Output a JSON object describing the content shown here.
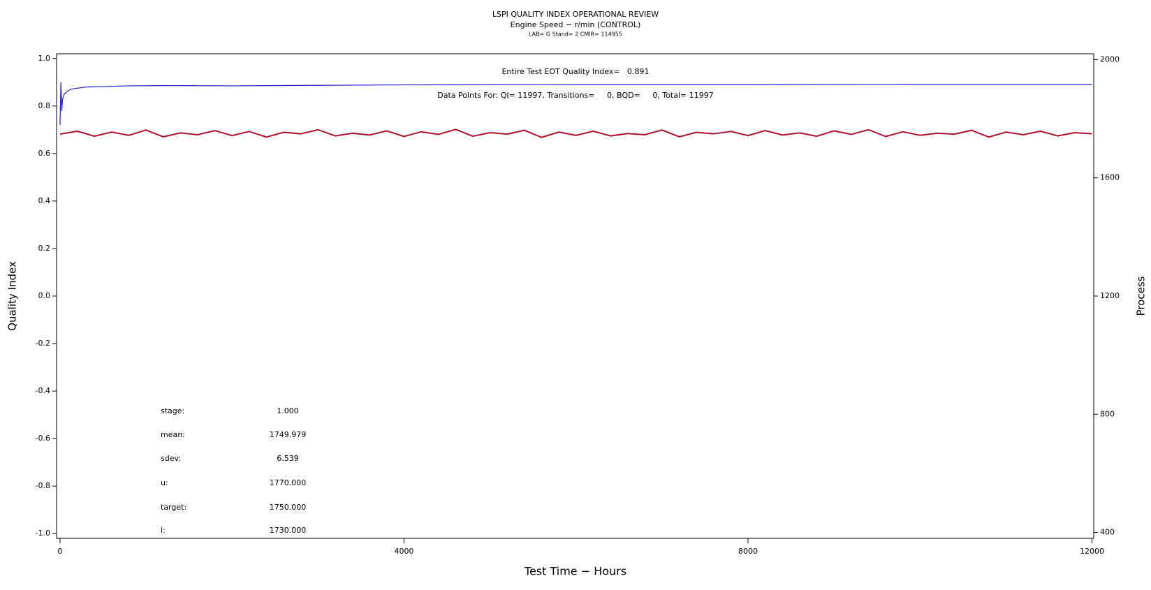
{
  "chart_data": {
    "type": "line",
    "title": "LSPI QUALITY INDEX OPERATIONAL REVIEW",
    "subtitle": "Engine Speed − r/min (CONTROL)",
    "caption": "LAB= G Stand= 2 CMIR= 114955",
    "x_label": "Test Time − Hours",
    "y_label": "Quality Index",
    "y2_label": "Process",
    "annotations": [
      "Entire Test EOT Quality Index=   0.891",
      "Data Points For: QI= 11997, Transitions=     0, BQD=     0, Total= 11997"
    ],
    "stats": [
      [
        "stage:",
        "1.000"
      ],
      [
        "mean:",
        "1749.979"
      ],
      [
        "sdev:",
        "6.539"
      ],
      [
        "u:",
        "1770.000"
      ],
      [
        "target:",
        "1750.000"
      ],
      [
        "l:",
        "1730.000"
      ]
    ],
    "xlim": [
      -40,
      12020
    ],
    "xticks": [
      0,
      4000,
      8000,
      12000
    ],
    "ylim": [
      -1.02,
      1.02
    ],
    "yticks": [
      {
        "value": 1,
        "label": "1.0"
      },
      0.8,
      0.6,
      0.4,
      0.2,
      {
        "value": 0,
        "label": "0.0"
      },
      -0.2,
      -0.4,
      -0.6,
      -0.8,
      {
        "value": -1,
        "label": "-1.0"
      }
    ],
    "y2lim": [
      380,
      2020
    ],
    "y2ticks": [
      400,
      800,
      1200,
      1600,
      2000
    ],
    "series": [
      {
        "name": "Process",
        "color": "#b0102a",
        "axis": "y2",
        "x": [
          0,
          200,
          400,
          600,
          800,
          1000,
          1200,
          1400,
          1600,
          1800,
          2000,
          2200,
          2400,
          2600,
          2800,
          3000,
          3200,
          3400,
          3600,
          3800,
          4000,
          4200,
          4400,
          4600,
          4800,
          5000,
          5200,
          5400,
          5600,
          5800,
          6000,
          6200,
          6400,
          6600,
          6800,
          7000,
          7200,
          7400,
          7600,
          7800,
          8000,
          8200,
          8400,
          8600,
          8800,
          9000,
          9200,
          9400,
          9600,
          9800,
          10000,
          10200,
          10400,
          10600,
          10800,
          11000,
          11200,
          11400,
          11600,
          11800,
          12000
        ],
        "values": [
          1748,
          1758,
          1741,
          1755,
          1744,
          1762,
          1739,
          1752,
          1746,
          1760,
          1743,
          1757,
          1738,
          1754,
          1749,
          1763,
          1742,
          1751,
          1745,
          1759,
          1740,
          1756,
          1747,
          1764,
          1741,
          1753,
          1748,
          1761,
          1737,
          1755,
          1744,
          1758,
          1742,
          1750,
          1746,
          1762,
          1739,
          1754,
          1749,
          1757,
          1743,
          1760,
          1745,
          1752,
          1741,
          1759,
          1747,
          1763,
          1740,
          1756,
          1744,
          1751,
          1748,
          1761,
          1738,
          1755,
          1746,
          1758,
          1742,
          1753,
          1749
        ]
      },
      {
        "name": "Quality Index",
        "color": "#1a1acc",
        "axis": "y",
        "x": [
          0,
          10,
          20,
          30,
          50,
          80,
          120,
          200,
          300,
          500,
          800,
          1200,
          2000,
          3000,
          4000,
          6000,
          8000,
          10000,
          12000
        ],
        "values": [
          0.72,
          0.9,
          0.78,
          0.83,
          0.85,
          0.86,
          0.87,
          0.875,
          0.88,
          0.882,
          0.885,
          0.886,
          0.885,
          0.887,
          0.889,
          0.89,
          0.89,
          0.891,
          0.891
        ]
      }
    ]
  }
}
